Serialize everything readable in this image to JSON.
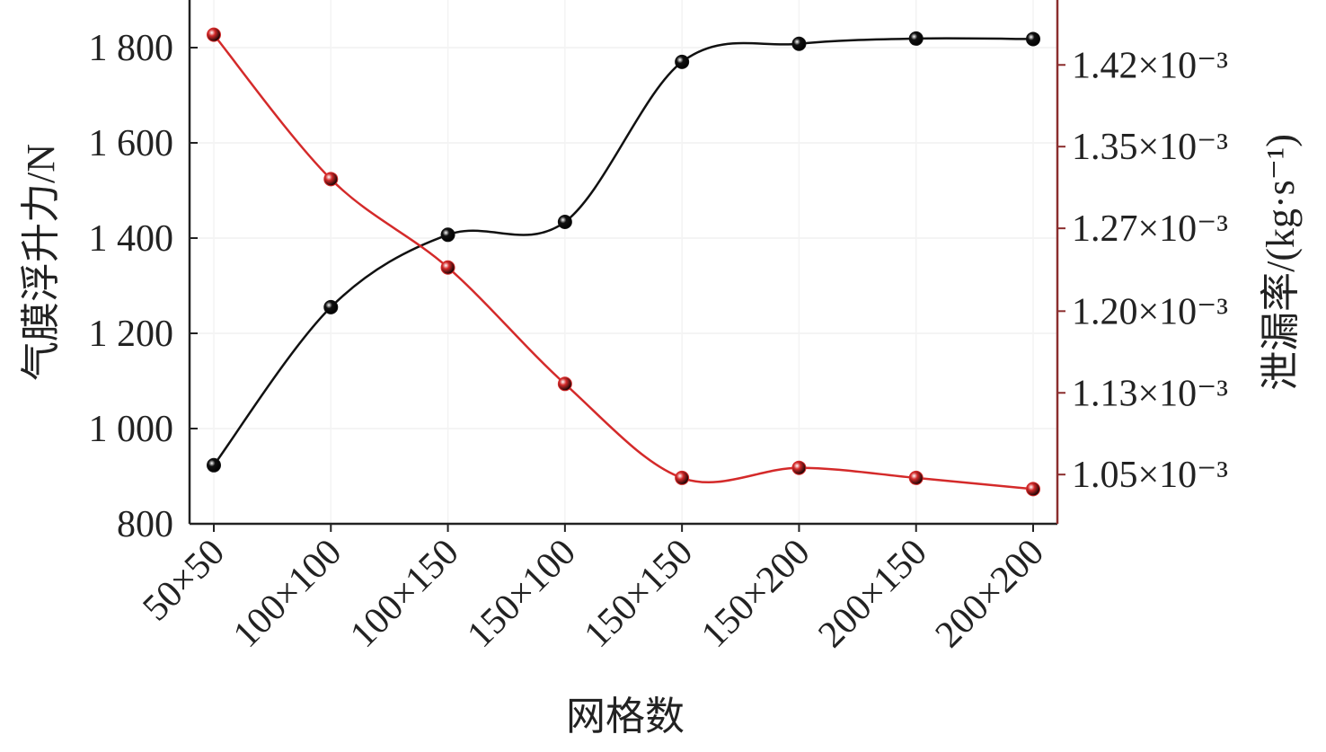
{
  "chart_data": {
    "type": "line",
    "x_label": "网格数",
    "y_label": "气膜浮升力/N",
    "y2_label": "泄漏率/(kg·s⁻¹)",
    "categories": [
      "50×50",
      "100×100",
      "100×150",
      "150×100",
      "150×150",
      "150×200",
      "200×150",
      "200×200"
    ],
    "series": [
      {
        "name": "气膜浮升力",
        "color": "#111111",
        "values": [
          923,
          1255,
          1407,
          1434,
          1770,
          1808,
          1819,
          1818
        ]
      },
      {
        "name": "泄漏率",
        "color": "#d42a2a",
        "axis": "y2",
        "values": [
          0.001447,
          0.001318,
          0.001239,
          0.001135,
          0.001051,
          0.00106,
          0.001051,
          0.001041
        ]
      }
    ],
    "ylim": [
      800,
      1900
    ],
    "yticks": [
      800,
      {
        "value": 1000,
        "label": "1 000"
      },
      {
        "value": 1200,
        "label": "1 200"
      },
      {
        "value": 1400,
        "label": "1 400"
      },
      {
        "value": 1600,
        "label": "1 600"
      },
      {
        "value": 1800,
        "label": "1 800"
      }
    ],
    "y2lim": [
      0.00101,
      0.001478
    ],
    "y2ticks": [
      {
        "value": 0.001054,
        "label": "1.05×10⁻³"
      },
      {
        "value": 0.001127,
        "label": "1.13×10⁻³"
      },
      {
        "value": 0.0012,
        "label": "1.20×10⁻³"
      },
      {
        "value": 0.001274,
        "label": "1.27×10⁻³"
      },
      {
        "value": 0.001347,
        "label": "1.35×10⁻³"
      },
      {
        "value": 0.00142,
        "label": "1.42×10⁻³"
      }
    ],
    "grid": true,
    "y2_axis_color": "#8b2e2e"
  }
}
